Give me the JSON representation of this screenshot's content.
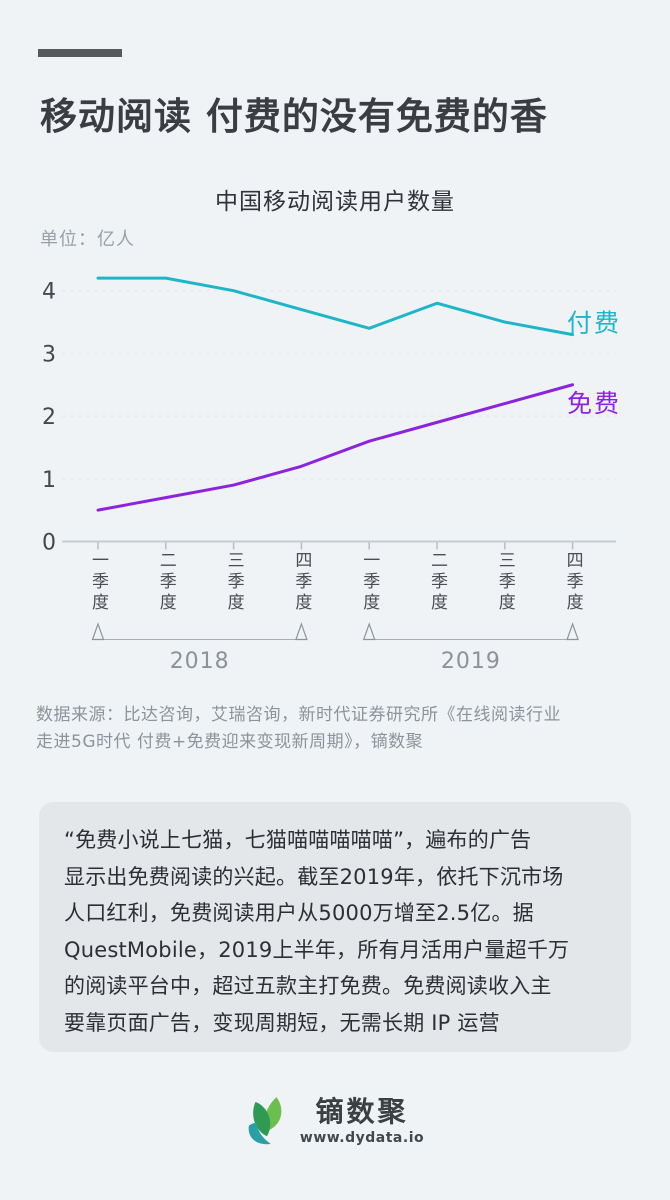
{
  "page": {
    "title": "移动阅读 付费的没有免费的香",
    "subtitle": "中国移动阅读用户数量",
    "unit_label": "单位：亿人",
    "source_text": "数据来源：比达咨询，艾瑞咨询，新时代证券研究所《在线阅读行业\n走进5G时代 付费+免费迎来变现新周期》，镝数聚"
  },
  "card": {
    "text": "“免费小说上七猫，七猫喵喵喵喵喵”，遍布的广告\n显示出免费阅读的兴起。截至2019年，依托下沉市场\n人口红利，免费阅读用户从5000万增至2.5亿。据\nQuestMobile，2019上半年，所有月活用户量超千万\n的阅读平台中，超过五款主打免费。免费阅读收入主\n要靠页面广告，变现周期短，无需长期 IP 运营"
  },
  "footer": {
    "logo_text": "镝数聚",
    "logo_url": "www.dydata.io"
  },
  "colors": {
    "background": "#eff3f6",
    "card_background": "#e3e7ea",
    "accent_paid": "#1db6c8",
    "accent_free": "#8d23e0",
    "dash": "#56585b"
  },
  "chart_data": {
    "type": "line",
    "title": "中国移动阅读用户数量",
    "unit": "亿人",
    "categories": [
      "一季度",
      "二季度",
      "三季度",
      "四季度",
      "一季度",
      "二季度",
      "三季度",
      "四季度"
    ],
    "year_groups": [
      {
        "label": "2018",
        "from": 0,
        "to": 3
      },
      {
        "label": "2019",
        "from": 4,
        "to": 7
      }
    ],
    "series": [
      {
        "name": "付费",
        "color": "#1db6c8",
        "values": [
          4.2,
          4.2,
          4.0,
          3.7,
          3.4,
          3.8,
          3.5,
          3.3
        ]
      },
      {
        "name": "免费",
        "color": "#8d23e0",
        "values": [
          0.5,
          0.7,
          0.9,
          1.2,
          1.6,
          1.9,
          2.2,
          2.5
        ]
      }
    ],
    "yticks": [
      0,
      1,
      2,
      3,
      4
    ],
    "ylim": [
      0,
      4.5
    ],
    "grid": "horizontal-dashed",
    "legend_position": "line-end-labels"
  }
}
